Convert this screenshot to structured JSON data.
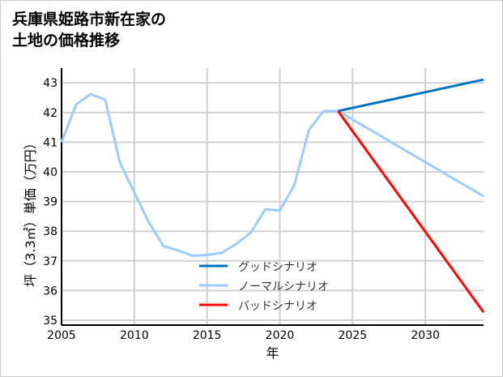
{
  "chart_data": {
    "type": "line",
    "title_lines": [
      "兵庫県姫路市新在家の",
      "土地の価格推移"
    ],
    "xlabel": "年",
    "ylabel": "坪（3.3㎡）単価（万円）",
    "xlim": [
      2005,
      2034
    ],
    "ylim": [
      34.9,
      43.4
    ],
    "xticks": [
      2005,
      2010,
      2015,
      2020,
      2025,
      2030
    ],
    "yticks": [
      35,
      36,
      37,
      38,
      39,
      40,
      41,
      42,
      43
    ],
    "grid": true,
    "legend_position": "bottom-center",
    "series": [
      {
        "name": "ノーマルシナリオ",
        "color": "#99ccff",
        "x": [
          2005,
          2006,
          2007,
          2008,
          2009,
          2010,
          2011,
          2012,
          2013,
          2014,
          2015,
          2016,
          2017,
          2018,
          2019,
          2020,
          2021,
          2022,
          2023,
          2024,
          2034
        ],
        "y": [
          41.0,
          42.27,
          42.62,
          42.43,
          40.33,
          39.3,
          38.3,
          37.5,
          37.35,
          37.17,
          37.2,
          37.27,
          37.57,
          37.95,
          38.74,
          38.7,
          39.56,
          41.42,
          42.05,
          42.05,
          39.18
        ]
      },
      {
        "name": "グッドシナリオ",
        "color": "#0070c0",
        "x": [
          2024,
          2034
        ],
        "y": [
          42.05,
          43.11
        ]
      },
      {
        "name": "バッドシナリオ",
        "color": "#ff0000",
        "x": [
          2024,
          2034
        ],
        "y": [
          42.05,
          35.27
        ]
      }
    ],
    "legend_order": [
      "グッドシナリオ",
      "ノーマルシナリオ",
      "バッドシナリオ"
    ]
  }
}
